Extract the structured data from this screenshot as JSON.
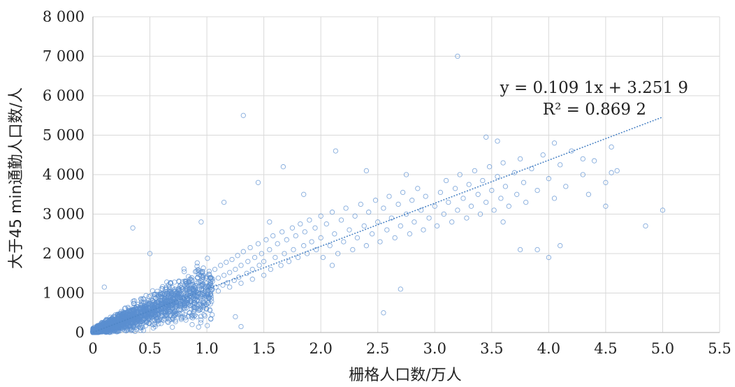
{
  "chart_data": {
    "type": "scatter",
    "xlabel": "栅格人口数/万人",
    "ylabel": "大于45 min通勤人口数/人",
    "xlim": [
      0,
      5.5
    ],
    "ylim": [
      0,
      8000
    ],
    "x_ticks": [
      0,
      0.5,
      1.0,
      1.5,
      2.0,
      2.5,
      3.0,
      3.5,
      4.0,
      4.5,
      5.0,
      5.5
    ],
    "x_tick_labels": [
      "0",
      "0.5",
      "1.0",
      "1.5",
      "2.0",
      "2.5",
      "3.0",
      "3.5",
      "4.0",
      "4.5",
      "5.0",
      "5.5"
    ],
    "y_ticks": [
      0,
      1000,
      2000,
      3000,
      4000,
      5000,
      6000,
      7000,
      8000
    ],
    "y_tick_labels": [
      "0",
      "1 000",
      "2 000",
      "3 000",
      "4 000",
      "5 000",
      "6 000",
      "7 000",
      "8 000"
    ],
    "grid": true,
    "trendline": {
      "slope": 1091,
      "intercept": 3.2519,
      "x_range": [
        0,
        5.0
      ],
      "style": "dotted"
    },
    "equation_text": "y = 0.109 1x + 3.251 9",
    "r2_text": "R² = 0.869 2",
    "series": [
      {
        "color": "#5b8fd0",
        "marker": "open-circle",
        "points": [
          [
            0.02,
            60
          ],
          [
            0.03,
            110
          ],
          [
            0.05,
            40
          ],
          [
            0.05,
            180
          ],
          [
            0.07,
            90
          ],
          [
            0.08,
            150
          ],
          [
            0.1,
            230
          ],
          [
            0.1,
            60
          ],
          [
            0.12,
            160
          ],
          [
            0.13,
            320
          ],
          [
            0.15,
            120
          ],
          [
            0.15,
            260
          ],
          [
            0.17,
            200
          ],
          [
            0.18,
            380
          ],
          [
            0.2,
            150
          ],
          [
            0.2,
            300
          ],
          [
            0.22,
            420
          ],
          [
            0.23,
            240
          ],
          [
            0.25,
            180
          ],
          [
            0.25,
            350
          ],
          [
            0.27,
            480
          ],
          [
            0.28,
            290
          ],
          [
            0.3,
            220
          ],
          [
            0.3,
            400
          ],
          [
            0.32,
            560
          ],
          [
            0.33,
            330
          ],
          [
            0.35,
            260
          ],
          [
            0.35,
            460
          ],
          [
            0.37,
            600
          ],
          [
            0.38,
            380
          ],
          [
            0.4,
            300
          ],
          [
            0.4,
            500
          ],
          [
            0.42,
            680
          ],
          [
            0.43,
            420
          ],
          [
            0.45,
            350
          ],
          [
            0.45,
            560
          ],
          [
            0.47,
            720
          ],
          [
            0.48,
            460
          ],
          [
            0.5,
            400
          ],
          [
            0.5,
            620
          ],
          [
            0.52,
            800
          ],
          [
            0.53,
            520
          ],
          [
            0.55,
            450
          ],
          [
            0.55,
            680
          ],
          [
            0.57,
            900
          ],
          [
            0.58,
            560
          ],
          [
            0.6,
            500
          ],
          [
            0.6,
            740
          ],
          [
            0.62,
            960
          ],
          [
            0.63,
            620
          ],
          [
            0.65,
            560
          ],
          [
            0.65,
            800
          ],
          [
            0.67,
            1050
          ],
          [
            0.68,
            680
          ],
          [
            0.7,
            620
          ],
          [
            0.7,
            860
          ],
          [
            0.72,
            1100
          ],
          [
            0.73,
            740
          ],
          [
            0.75,
            680
          ],
          [
            0.75,
            920
          ],
          [
            0.77,
            1200
          ],
          [
            0.78,
            800
          ],
          [
            0.8,
            740
          ],
          [
            0.8,
            980
          ],
          [
            0.82,
            1250
          ],
          [
            0.83,
            860
          ],
          [
            0.85,
            800
          ],
          [
            0.85,
            1050
          ],
          [
            0.87,
            1320
          ],
          [
            0.88,
            920
          ],
          [
            0.9,
            860
          ],
          [
            0.9,
            1100
          ],
          [
            0.92,
            1400
          ],
          [
            0.93,
            980
          ],
          [
            0.95,
            920
          ],
          [
            0.95,
            1180
          ],
          [
            0.97,
            1450
          ],
          [
            0.98,
            1040
          ],
          [
            1.0,
            980
          ],
          [
            1.0,
            1250
          ],
          [
            1.02,
            1550
          ],
          [
            1.04,
            1100
          ],
          [
            1.05,
            1300
          ],
          [
            1.07,
            1600
          ],
          [
            1.08,
            1150
          ],
          [
            1.1,
            1050
          ],
          [
            1.1,
            1380
          ],
          [
            1.12,
            1700
          ],
          [
            1.14,
            1200
          ],
          [
            1.15,
            1450
          ],
          [
            1.17,
            1780
          ],
          [
            1.18,
            1260
          ],
          [
            1.2,
            1150
          ],
          [
            1.2,
            1520
          ],
          [
            1.22,
            1850
          ],
          [
            1.24,
            1320
          ],
          [
            1.25,
            1600
          ],
          [
            1.27,
            1950
          ],
          [
            1.28,
            1400
          ],
          [
            1.3,
            1250
          ],
          [
            1.3,
            1700
          ],
          [
            1.32,
            2050
          ],
          [
            1.35,
            1500
          ],
          [
            1.36,
            1800
          ],
          [
            1.38,
            2150
          ],
          [
            1.4,
            1350
          ],
          [
            1.4,
            1600
          ],
          [
            1.42,
            1900
          ],
          [
            1.45,
            2250
          ],
          [
            1.46,
            1700
          ],
          [
            1.48,
            2000
          ],
          [
            1.5,
            1450
          ],
          [
            1.5,
            1800
          ],
          [
            1.52,
            2350
          ],
          [
            1.55,
            2100
          ],
          [
            1.56,
            1600
          ],
          [
            1.58,
            2450
          ],
          [
            1.6,
            1900
          ],
          [
            1.62,
            2250
          ],
          [
            1.65,
            1700
          ],
          [
            1.66,
            2550
          ],
          [
            1.68,
            2000
          ],
          [
            1.7,
            2350
          ],
          [
            1.72,
            1800
          ],
          [
            1.75,
            2650
          ],
          [
            1.76,
            2100
          ],
          [
            1.78,
            2450
          ],
          [
            1.8,
            1900
          ],
          [
            1.82,
            2750
          ],
          [
            1.85,
            2200
          ],
          [
            1.86,
            2550
          ],
          [
            1.88,
            2000
          ],
          [
            1.9,
            2850
          ],
          [
            1.92,
            2300
          ],
          [
            1.95,
            2650
          ],
          [
            1.96,
            2100
          ],
          [
            2.0,
            2950
          ],
          [
            2.0,
            2400
          ],
          [
            2.02,
            1900
          ],
          [
            2.05,
            2750
          ],
          [
            2.08,
            2200
          ],
          [
            2.1,
            3050
          ],
          [
            2.12,
            2500
          ],
          [
            2.15,
            2000
          ],
          [
            2.18,
            2850
          ],
          [
            2.2,
            2300
          ],
          [
            2.22,
            3150
          ],
          [
            2.25,
            2600
          ],
          [
            2.28,
            2100
          ],
          [
            2.3,
            2950
          ],
          [
            2.32,
            2400
          ],
          [
            2.35,
            3250
          ],
          [
            2.38,
            2700
          ],
          [
            2.4,
            2200
          ],
          [
            2.42,
            3050
          ],
          [
            2.45,
            2500
          ],
          [
            2.48,
            3350
          ],
          [
            2.5,
            2800
          ],
          [
            2.52,
            2300
          ],
          [
            2.55,
            3150
          ],
          [
            2.58,
            2600
          ],
          [
            2.6,
            3450
          ],
          [
            2.62,
            2900
          ],
          [
            2.65,
            2400
          ],
          [
            2.68,
            3250
          ],
          [
            2.7,
            2700
          ],
          [
            2.72,
            3550
          ],
          [
            2.75,
            3000
          ],
          [
            2.78,
            2500
          ],
          [
            2.8,
            3350
          ],
          [
            2.82,
            2800
          ],
          [
            2.85,
            3650
          ],
          [
            2.88,
            3100
          ],
          [
            2.9,
            2600
          ],
          [
            2.92,
            3450
          ],
          [
            2.95,
            2900
          ],
          [
            3.0,
            3200
          ],
          [
            3.02,
            2700
          ],
          [
            3.05,
            3550
          ],
          [
            3.08,
            3000
          ],
          [
            3.1,
            3850
          ],
          [
            3.12,
            3300
          ],
          [
            3.15,
            2800
          ],
          [
            3.18,
            3650
          ],
          [
            3.2,
            3100
          ],
          [
            3.22,
            4000
          ],
          [
            3.25,
            3400
          ],
          [
            3.28,
            2900
          ],
          [
            3.3,
            3750
          ],
          [
            3.32,
            3200
          ],
          [
            3.35,
            4100
          ],
          [
            3.38,
            3500
          ],
          [
            3.4,
            3000
          ],
          [
            3.42,
            3850
          ],
          [
            3.45,
            3300
          ],
          [
            3.48,
            4200
          ],
          [
            3.5,
            3600
          ],
          [
            3.52,
            3100
          ],
          [
            3.55,
            3950
          ],
          [
            3.58,
            3400
          ],
          [
            3.6,
            4300
          ],
          [
            3.62,
            3700
          ],
          [
            3.65,
            3200
          ],
          [
            3.7,
            4050
          ],
          [
            3.72,
            3500
          ],
          [
            3.75,
            4400
          ],
          [
            3.78,
            3800
          ],
          [
            3.8,
            3300
          ],
          [
            3.85,
            4150
          ],
          [
            3.9,
            3600
          ],
          [
            3.95,
            4500
          ],
          [
            4.0,
            3900
          ],
          [
            4.05,
            3400
          ],
          [
            4.1,
            4250
          ],
          [
            4.15,
            3700
          ],
          [
            4.2,
            4600
          ],
          [
            4.3,
            4000
          ],
          [
            4.35,
            3500
          ],
          [
            4.4,
            4350
          ],
          [
            4.5,
            3800
          ],
          [
            4.55,
            4700
          ],
          [
            4.6,
            4100
          ],
          [
            0.1,
            1150
          ],
          [
            0.35,
            2650
          ],
          [
            1.32,
            5500
          ],
          [
            1.45,
            3800
          ],
          [
            1.67,
            4200
          ],
          [
            1.85,
            3500
          ],
          [
            2.13,
            4600
          ],
          [
            2.4,
            4100
          ],
          [
            2.7,
            1100
          ],
          [
            2.75,
            4000
          ],
          [
            3.2,
            7000
          ],
          [
            3.45,
            4950
          ],
          [
            3.55,
            4850
          ],
          [
            3.9,
            2100
          ],
          [
            4.0,
            1900
          ],
          [
            4.05,
            4800
          ],
          [
            4.1,
            2200
          ],
          [
            4.3,
            4400
          ],
          [
            4.5,
            3200
          ],
          [
            4.55,
            4050
          ],
          [
            4.85,
            2700
          ],
          [
            5.0,
            3100
          ],
          [
            3.6,
            2800
          ],
          [
            3.75,
            2100
          ],
          [
            2.55,
            500
          ],
          [
            1.3,
            150
          ],
          [
            1.15,
            3300
          ],
          [
            0.95,
            2800
          ],
          [
            1.55,
            2800
          ],
          [
            2.1,
            1700
          ],
          [
            1.25,
            400
          ],
          [
            0.5,
            2000
          ]
        ]
      }
    ]
  }
}
